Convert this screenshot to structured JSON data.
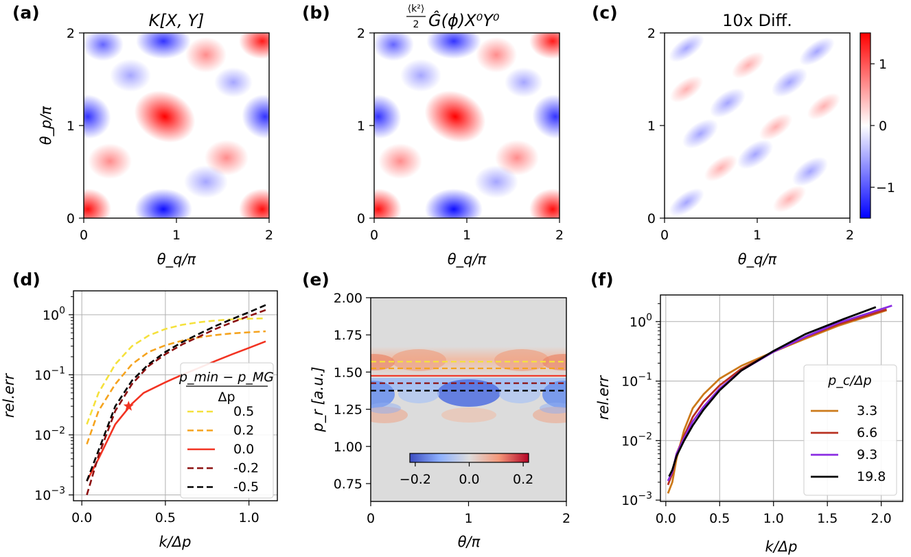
{
  "chart_data": [
    {
      "panel": "a",
      "type": "heatmap",
      "panel_label": "(a)",
      "title": "K[X, Y]",
      "xlabel": "θ_q/π",
      "ylabel": "θ_p/π",
      "xlim": [
        0,
        2
      ],
      "ylim": [
        0,
        2
      ],
      "xticks": [
        "0",
        "1",
        "2"
      ],
      "yticks": [
        "0",
        "1",
        "2"
      ],
      "colormap": "bwr",
      "clim": [
        -1.5,
        1.5
      ]
    },
    {
      "panel": "b",
      "type": "heatmap",
      "panel_label": "(b)",
      "title_fraction_num": "⟨k²⟩",
      "title_fraction_den": "2",
      "title_rest": "Ĝ(ϕ)X⁰Y⁰",
      "xlabel": "θ_q/π",
      "xlim": [
        0,
        2
      ],
      "ylim": [
        0,
        2
      ],
      "xticks": [
        "0",
        "1",
        "2"
      ],
      "yticks": [
        "0",
        "1",
        "2"
      ],
      "colormap": "bwr"
    },
    {
      "panel": "c",
      "type": "heatmap",
      "panel_label": "(c)",
      "title": "10x Diff.",
      "xlabel": "θ_q/π",
      "xlim": [
        0,
        2
      ],
      "ylim": [
        0,
        2
      ],
      "xticks": [
        "0",
        "1",
        "2"
      ],
      "yticks": [
        "0",
        "1",
        "2"
      ],
      "colorbar_ticks": [
        "1",
        "0",
        "−1"
      ],
      "colorbar_values": [
        1,
        0,
        -1
      ],
      "clim": [
        -1.5,
        1.5
      ]
    },
    {
      "panel": "d",
      "type": "line",
      "panel_label": "(d)",
      "xlabel": "k/Δp",
      "ylabel": "rel.err",
      "yscale": "log",
      "xlim": [
        -0.05,
        1.17
      ],
      "ylim": [
        0.0008,
        2.5
      ],
      "xticks": [
        {
          "v": 0.0,
          "label": "0.0"
        },
        {
          "v": 0.5,
          "label": "0.5"
        },
        {
          "v": 1.0,
          "label": "1.0"
        }
      ],
      "yticks": [
        {
          "v": 0.001,
          "base": "10",
          "exp": "−3"
        },
        {
          "v": 0.01,
          "base": "10",
          "exp": "−2"
        },
        {
          "v": 0.1,
          "base": "10",
          "exp": "−1"
        },
        {
          "v": 1,
          "base": "10",
          "exp": "0"
        }
      ],
      "legend_title_num": "p_min − p_MG",
      "legend_title_den": "Δp",
      "marker": {
        "x": 0.28,
        "y": 0.03,
        "color": "#f23322"
      },
      "series": [
        {
          "name": "0.5",
          "color": "#f5e13c",
          "dash": true,
          "x": [
            0.03,
            0.1,
            0.2,
            0.3,
            0.4,
            0.5,
            0.6,
            0.7,
            0.8,
            0.9,
            1.0,
            1.1
          ],
          "y": [
            0.015,
            0.05,
            0.15,
            0.3,
            0.45,
            0.58,
            0.68,
            0.75,
            0.8,
            0.84,
            0.86,
            0.87
          ]
        },
        {
          "name": "0.2",
          "color": "#f5a31e",
          "dash": true,
          "x": [
            0.03,
            0.1,
            0.2,
            0.3,
            0.4,
            0.5,
            0.6,
            0.7,
            0.8,
            0.9,
            1.0,
            1.1
          ],
          "y": [
            0.007,
            0.025,
            0.07,
            0.15,
            0.24,
            0.31,
            0.37,
            0.42,
            0.46,
            0.49,
            0.51,
            0.53
          ]
        },
        {
          "name": "0.0",
          "color": "#f23322",
          "dash": false,
          "x": [
            0.03,
            0.1,
            0.2,
            0.3,
            0.37,
            0.5,
            0.6,
            0.7,
            0.8,
            0.9,
            1.0,
            1.1
          ],
          "y": [
            0.0017,
            0.004,
            0.015,
            0.033,
            0.05,
            0.075,
            0.1,
            0.13,
            0.17,
            0.22,
            0.28,
            0.36
          ]
        },
        {
          "name": "-0.2",
          "color": "#8c1010",
          "dash": true,
          "x": [
            0.03,
            0.1,
            0.2,
            0.3,
            0.4,
            0.5,
            0.6,
            0.7,
            0.8,
            0.9,
            1.0,
            1.1
          ],
          "y": [
            0.001,
            0.0045,
            0.025,
            0.07,
            0.14,
            0.22,
            0.32,
            0.43,
            0.58,
            0.75,
            0.95,
            1.2
          ]
        },
        {
          "name": "-0.5",
          "color": "#000000",
          "dash": true,
          "x": [
            0.03,
            0.1,
            0.2,
            0.3,
            0.4,
            0.5,
            0.6,
            0.7,
            0.8,
            0.9,
            1.0,
            1.1
          ],
          "y": [
            0.0017,
            0.0055,
            0.03,
            0.08,
            0.15,
            0.24,
            0.35,
            0.48,
            0.65,
            0.85,
            1.1,
            1.45
          ]
        }
      ]
    },
    {
      "panel": "e",
      "type": "heatmap",
      "panel_label": "(e)",
      "xlabel": "θ/π",
      "ylabel": "p_r [a.u.]",
      "xlim": [
        0,
        2
      ],
      "ylim": [
        0.63,
        2.0
      ],
      "xticks": [
        "0",
        "1",
        "2"
      ],
      "yticks": [
        {
          "v": 0.75,
          "label": "0.75"
        },
        {
          "v": 1.0,
          "label": "1.00"
        },
        {
          "v": 1.25,
          "label": "1.25"
        },
        {
          "v": 1.5,
          "label": "1.50"
        },
        {
          "v": 1.75,
          "label": "1.75"
        },
        {
          "v": 2.0,
          "label": "2.00"
        }
      ],
      "colorbar_ticks": [
        "−0.2",
        "0.0",
        "0.2"
      ],
      "colorbar_values": [
        -0.2,
        0.0,
        0.2
      ],
      "clim": [
        -0.22,
        0.22
      ],
      "hlines": [
        {
          "y": 1.57,
          "color": "#f5e13c",
          "dash": true
        },
        {
          "y": 1.525,
          "color": "#f5a31e",
          "dash": true
        },
        {
          "y": 1.475,
          "color": "#f23322",
          "dash": false
        },
        {
          "y": 1.425,
          "color": "#8c1010",
          "dash": true
        },
        {
          "y": 1.375,
          "color": "#000000",
          "dash": true
        }
      ]
    },
    {
      "panel": "f",
      "type": "line",
      "panel_label": "(f)",
      "xlabel": "k/Δp",
      "ylabel": "rel.err",
      "yscale": "log",
      "xlim": [
        -0.05,
        2.2
      ],
      "ylim": [
        0.00095,
        2.8
      ],
      "xticks": [
        {
          "v": 0.0,
          "label": "0.0"
        },
        {
          "v": 0.5,
          "label": "0.5"
        },
        {
          "v": 1.0,
          "label": "1.0"
        },
        {
          "v": 1.5,
          "label": "1.5"
        },
        {
          "v": 2.0,
          "label": "2.0"
        }
      ],
      "yticks": [
        {
          "v": 0.001,
          "base": "10",
          "exp": "−3"
        },
        {
          "v": 0.01,
          "base": "10",
          "exp": "−2"
        },
        {
          "v": 0.1,
          "base": "10",
          "exp": "−1"
        },
        {
          "v": 1,
          "base": "10",
          "exp": "0"
        }
      ],
      "legend_title": "p_c/Δp",
      "series": [
        {
          "name": "3.3",
          "color": "#cc7a1a",
          "x": [
            0.02,
            0.06,
            0.1,
            0.17,
            0.25,
            0.35,
            0.5,
            0.7,
            1.0,
            1.3,
            1.6,
            2.05
          ],
          "y": [
            0.0013,
            0.002,
            0.005,
            0.015,
            0.035,
            0.06,
            0.11,
            0.18,
            0.31,
            0.52,
            0.85,
            1.55
          ]
        },
        {
          "name": "6.6",
          "color": "#b83020",
          "x": [
            0.02,
            0.06,
            0.1,
            0.17,
            0.25,
            0.35,
            0.5,
            0.7,
            1.0,
            1.3,
            1.6,
            2.05
          ],
          "y": [
            0.0018,
            0.0028,
            0.006,
            0.012,
            0.025,
            0.045,
            0.085,
            0.16,
            0.31,
            0.55,
            0.9,
            1.6
          ]
        },
        {
          "name": "9.3",
          "color": "#8a2be2",
          "x": [
            0.02,
            0.06,
            0.1,
            0.17,
            0.25,
            0.35,
            0.5,
            0.7,
            1.0,
            1.3,
            1.6,
            2.1
          ],
          "y": [
            0.0021,
            0.003,
            0.006,
            0.011,
            0.021,
            0.037,
            0.075,
            0.15,
            0.31,
            0.56,
            0.95,
            1.85
          ]
        },
        {
          "name": "19.8",
          "color": "#000000",
          "x": [
            0.03,
            0.06,
            0.1,
            0.17,
            0.25,
            0.35,
            0.5,
            0.7,
            1.0,
            1.3,
            1.65,
            1.95
          ],
          "y": [
            0.0025,
            0.0032,
            0.0055,
            0.01,
            0.018,
            0.033,
            0.07,
            0.15,
            0.32,
            0.62,
            1.1,
            1.75
          ]
        }
      ]
    }
  ]
}
